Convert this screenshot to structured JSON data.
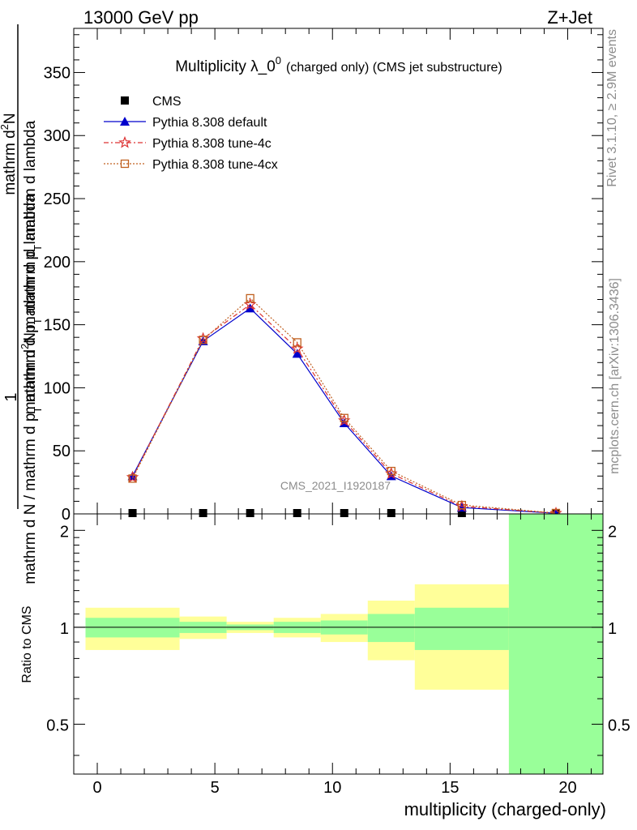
{
  "header": {
    "energy_label": "13000 GeV pp",
    "process_label": "Z+Jet"
  },
  "side_labels": {
    "rivet": "Rivet 3.1.10, ≥ 2.9M events",
    "mcplots": "mcplots.cern.ch [arXiv:1306.3436]"
  },
  "watermark": "CMS_2021_I1920187",
  "chart_data": [
    {
      "type": "line",
      "title": "Multiplicity λ_0",
      "title_superscript": "0",
      "title_suffix": "(charged only) (CMS jet substructure)",
      "ylabel_parts": {
        "one": "1",
        "fraction_top": "mathrm dN / mathrm d p_T mathrm d lambda",
        "fraction_bottom": "mathrm d N / mathrm d p_T"
      },
      "ylabel_text": {
        "numerator": "mathrm d",
        "numerator_sup": "2",
        "numerator_N": "N",
        "den_a": "mathrm d p",
        "den_a_sub": "T",
        "den_b": " mathrm d lambda",
        "left_a": "mathrm d N / mathrm d p",
        "left_a_sub": "T",
        "left_b": " mathrm d p",
        "left_b_sub": "T",
        "left_c": " mathrm d lambda"
      },
      "xlim": [
        -1,
        21.5
      ],
      "ylim": [
        0,
        385
      ],
      "yticks": [
        0,
        50,
        100,
        150,
        200,
        250,
        300,
        350
      ],
      "legend_position": "top-left",
      "series": [
        {
          "name": "CMS",
          "color": "#000000",
          "marker": "square",
          "x": [
            1.5,
            4.5,
            6.5,
            8.5,
            10.5,
            12.5,
            15.5,
            19.5
          ],
          "values": [
            0.4,
            0.4,
            0.4,
            0.4,
            0.4,
            0.4,
            0.4,
            0.4
          ]
        },
        {
          "name": "Pythia 8.308 default",
          "color": "#0000cc",
          "marker": "triangle",
          "x": [
            1.5,
            4.5,
            6.5,
            8.5,
            10.5,
            12.5,
            15.5,
            19.5
          ],
          "values": [
            30,
            137,
            163,
            127,
            72,
            30,
            5,
            0.5
          ]
        },
        {
          "name": "Pythia 8.308 tune-4c",
          "color": "#dd3333",
          "marker": "star",
          "x": [
            1.5,
            4.5,
            6.5,
            8.5,
            10.5,
            12.5,
            15.5,
            19.5
          ],
          "values": [
            29,
            139,
            166,
            131,
            74,
            32,
            6,
            0.6
          ]
        },
        {
          "name": "Pythia 8.308 tune-4cx",
          "color": "#c06020",
          "marker": "open-square",
          "x": [
            1.5,
            4.5,
            6.5,
            8.5,
            10.5,
            12.5,
            15.5,
            19.5
          ],
          "values": [
            28,
            138,
            171,
            136,
            76,
            34,
            7,
            0.7
          ]
        }
      ]
    },
    {
      "type": "area",
      "ylabel": "Ratio to CMS",
      "xlabel": "multiplicity (charged-only)",
      "xlim": [
        -1,
        21.5
      ],
      "ylim": [
        0.35,
        2.25
      ],
      "xticks": [
        0,
        5,
        10,
        15,
        20
      ],
      "yticks": [
        0.5,
        1,
        2
      ],
      "reference_line": 1,
      "bins": [
        {
          "x_low": -0.5,
          "x_high": 3.5,
          "inner": [
            0.93,
            1.07
          ],
          "outer": [
            0.85,
            1.15
          ]
        },
        {
          "x_low": 3.5,
          "x_high": 5.5,
          "inner": [
            0.96,
            1.04
          ],
          "outer": [
            0.92,
            1.08
          ]
        },
        {
          "x_low": 5.5,
          "x_high": 7.5,
          "inner": [
            0.98,
            1.02
          ],
          "outer": [
            0.96,
            1.04
          ]
        },
        {
          "x_low": 7.5,
          "x_high": 9.5,
          "inner": [
            0.96,
            1.04
          ],
          "outer": [
            0.93,
            1.07
          ]
        },
        {
          "x_low": 9.5,
          "x_high": 11.5,
          "inner": [
            0.95,
            1.05
          ],
          "outer": [
            0.9,
            1.1
          ]
        },
        {
          "x_low": 11.5,
          "x_high": 13.5,
          "inner": [
            0.9,
            1.1
          ],
          "outer": [
            0.79,
            1.21
          ]
        },
        {
          "x_low": 13.5,
          "x_high": 17.5,
          "inner": [
            0.85,
            1.15
          ],
          "outer": [
            0.64,
            1.36
          ]
        },
        {
          "x_low": 17.5,
          "x_high": 21.5,
          "inner": [
            0.2,
            2.3
          ],
          "outer": [
            0.2,
            2.3
          ]
        }
      ],
      "colors": {
        "inner": "#99ff99",
        "outer": "#ffff99"
      }
    }
  ]
}
